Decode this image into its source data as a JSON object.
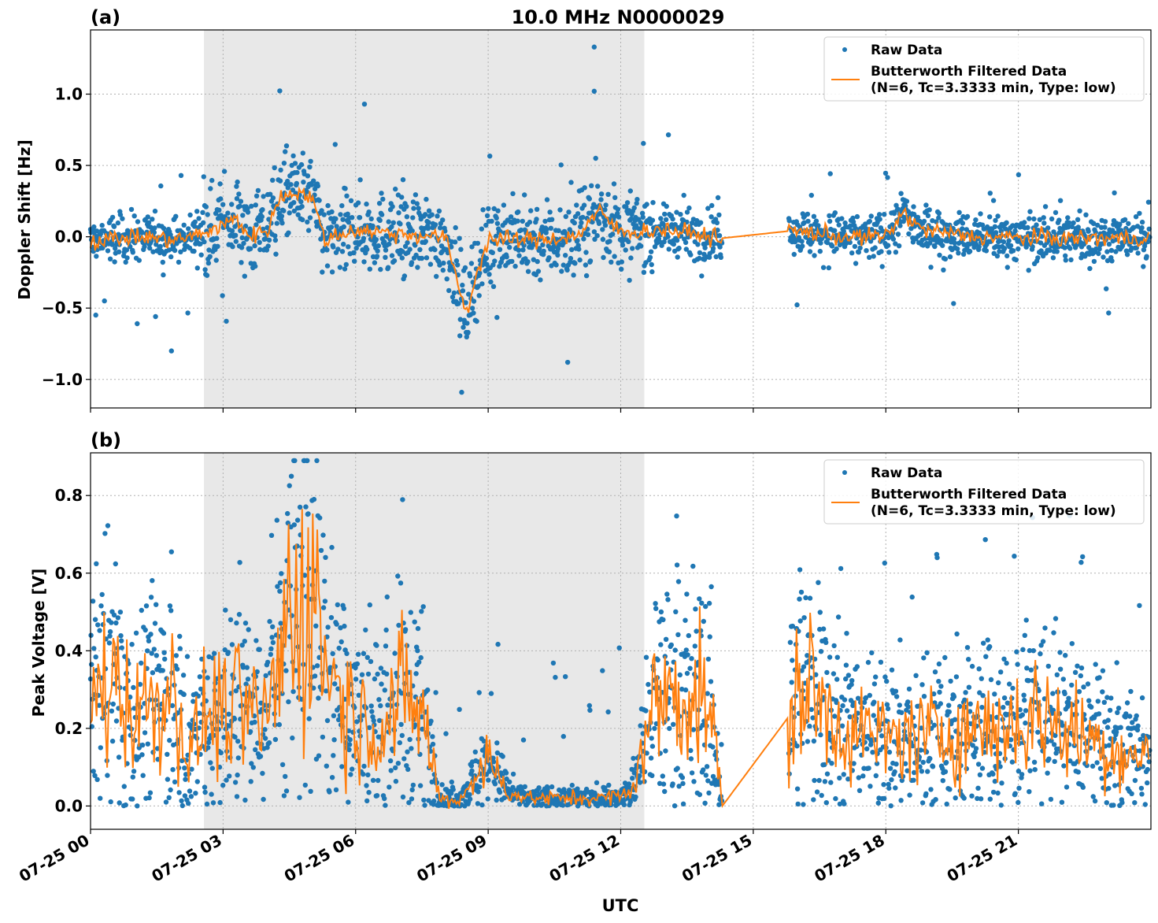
{
  "chart_data": [
    {
      "type": "scatter",
      "panel_label": "(a)",
      "title": "10.0 MHz N0000029",
      "ylabel": "Doppler Shift [Hz]",
      "ylim": [
        -1.2,
        1.45
      ],
      "yticks": [
        1.0,
        0.5,
        0.0,
        -0.5,
        -1.0
      ],
      "ytick_labels": [
        "1.0",
        "0.5",
        "0.0",
        "−0.5",
        "−1.0"
      ],
      "grid": true,
      "legend_position": "top-right",
      "shaded_interval": [
        "07-25 02:34",
        "07-25 12:32"
      ],
      "gap": [
        "07-25 14:20",
        "07-25 15:47"
      ],
      "series": [
        {
          "name": "Raw Data",
          "style": "points",
          "color": "#1f77b4",
          "typical_range": [
            -0.15,
            0.15
          ],
          "notable_extrema": [
            1.33,
            1.02,
            0.93,
            -1.09,
            -0.88
          ]
        },
        {
          "name": "Butterworth Filtered Data",
          "name_line2": "(N=6, Tc=3.3333 min, Type: low)",
          "style": "line",
          "color": "#ff7f0e",
          "x_hours": [
            0,
            1,
            2,
            2.5,
            3,
            3.3,
            3.6,
            4,
            4.3,
            4.6,
            5,
            5.3,
            6,
            7,
            8,
            8.2,
            8.5,
            8.7,
            9,
            10,
            11,
            11.5,
            12,
            13,
            14.3,
            15.8,
            16.3,
            17,
            18,
            18.4,
            18.8,
            20,
            22,
            23.95
          ],
          "values": [
            -0.03,
            0.0,
            -0.02,
            0.02,
            0.08,
            0.13,
            0.0,
            0.05,
            0.28,
            0.32,
            0.28,
            -0.02,
            0.05,
            0.02,
            0.0,
            -0.18,
            -0.55,
            -0.3,
            -0.02,
            -0.02,
            0.0,
            0.18,
            0.03,
            0.05,
            -0.01,
            0.04,
            0.03,
            0.0,
            0.0,
            0.17,
            0.05,
            0.0,
            -0.01,
            -0.01
          ]
        }
      ]
    },
    {
      "type": "scatter",
      "panel_label": "(b)",
      "ylabel": "Peak Voltage [V]",
      "xlabel": "UTC",
      "ylim": [
        -0.06,
        0.91
      ],
      "yticks": [
        0.8,
        0.6,
        0.4,
        0.2,
        0.0
      ],
      "ytick_labels": [
        "0.8",
        "0.6",
        "0.4",
        "0.2",
        "0.0"
      ],
      "grid": true,
      "legend_position": "top-right",
      "shaded_interval": [
        "07-25 02:34",
        "07-25 12:32"
      ],
      "series": [
        {
          "name": "Raw Data",
          "style": "points",
          "color": "#1f77b4",
          "typical_range": [
            0.0,
            0.87
          ]
        },
        {
          "name": "Butterworth Filtered Data",
          "name_line2": "(N=6, Tc=3.3333 min, Type: low)",
          "style": "line",
          "color": "#ff7f0e",
          "x_hours": [
            0,
            0.5,
            1,
            1.5,
            2,
            2.2,
            2.5,
            3,
            3.5,
            4,
            4.5,
            5,
            5.5,
            6,
            6.5,
            7,
            7.5,
            7.9,
            8.3,
            9,
            9.5,
            10,
            11,
            11.5,
            12.2,
            12.8,
            13.3,
            14.0,
            14.3,
            15.8,
            16.1,
            17,
            18,
            18.3,
            19,
            20,
            21,
            21.5,
            22,
            22.5,
            23,
            23.95
          ],
          "values": [
            0.26,
            0.34,
            0.24,
            0.28,
            0.3,
            0.1,
            0.22,
            0.25,
            0.24,
            0.22,
            0.5,
            0.55,
            0.32,
            0.23,
            0.2,
            0.27,
            0.25,
            0.02,
            0.01,
            0.12,
            0.03,
            0.02,
            0.02,
            0.02,
            0.03,
            0.27,
            0.3,
            0.27,
            0.0,
            0.23,
            0.32,
            0.2,
            0.17,
            0.18,
            0.18,
            0.2,
            0.21,
            0.24,
            0.2,
            0.18,
            0.15,
            0.12
          ]
        }
      ]
    }
  ],
  "x_axis": {
    "start": "07-25 00",
    "span_hours": 24,
    "ticks_hours": [
      0,
      3,
      6,
      9,
      12,
      15,
      18,
      21
    ],
    "tick_labels": [
      "07-25 00",
      "07-25 03",
      "07-25 06",
      "07-25 09",
      "07-25 12",
      "07-25 15",
      "07-25 18",
      "07-25 21"
    ]
  },
  "legend": {
    "raw_label": "Raw Data",
    "filtered_label_line1": "Butterworth Filtered Data",
    "filtered_label_line2": "(N=6, Tc=3.3333 min, Type: low)"
  },
  "colors": {
    "raw": "#1f77b4",
    "filtered": "#ff7f0e",
    "shade": "#e8e8e8",
    "grid": "#b0b0b0"
  }
}
